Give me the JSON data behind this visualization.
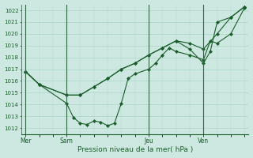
{
  "title": "Pression niveau de la mer( hPa )",
  "ylabel_ticks": [
    1012,
    1013,
    1014,
    1015,
    1016,
    1017,
    1018,
    1019,
    1020,
    1021,
    1022
  ],
  "ylim": [
    1011.5,
    1022.5
  ],
  "background_color": "#cce8e0",
  "grid_color": "#99ccbb",
  "line_color": "#1a5c2a",
  "vline_color": "#336644",
  "xtick_labels": [
    "Mer",
    "Sam",
    "Jeu",
    "Ven"
  ],
  "xtick_pos": [
    0,
    3,
    9,
    13
  ],
  "xlim": [
    -0.3,
    16.3
  ],
  "line1_x": [
    0,
    1,
    3,
    3.5,
    4,
    4.5,
    5,
    5.5,
    6,
    6.5,
    7,
    7.5,
    8,
    9,
    9.5,
    10,
    10.5,
    11,
    12,
    13,
    13.5,
    14,
    15,
    16
  ],
  "line1_y": [
    1016.8,
    1015.7,
    1014.1,
    1012.9,
    1012.4,
    1012.3,
    1012.6,
    1012.5,
    1012.2,
    1012.4,
    1014.1,
    1016.2,
    1016.6,
    1017.0,
    1017.5,
    1018.2,
    1018.8,
    1018.5,
    1018.2,
    1017.8,
    1019.4,
    1019.2,
    1020.0,
    1022.2
  ],
  "line2_x": [
    0,
    1,
    3,
    4,
    5,
    6,
    7,
    8,
    9,
    10,
    11,
    12,
    13,
    13.5,
    14,
    15,
    16
  ],
  "line2_y": [
    1016.8,
    1015.7,
    1014.8,
    1014.8,
    1015.5,
    1016.2,
    1017.0,
    1017.5,
    1018.2,
    1018.8,
    1019.4,
    1018.7,
    1017.5,
    1018.5,
    1021.0,
    1021.4,
    1022.3
  ],
  "line3_x": [
    0,
    1,
    3,
    4,
    5,
    6,
    7,
    8,
    9,
    10,
    11,
    12,
    13,
    14,
    15,
    16
  ],
  "line3_y": [
    1016.8,
    1015.7,
    1014.8,
    1014.8,
    1015.5,
    1016.2,
    1017.0,
    1017.5,
    1018.2,
    1018.8,
    1019.4,
    1019.2,
    1018.7,
    1020.0,
    1021.4,
    1022.3
  ]
}
